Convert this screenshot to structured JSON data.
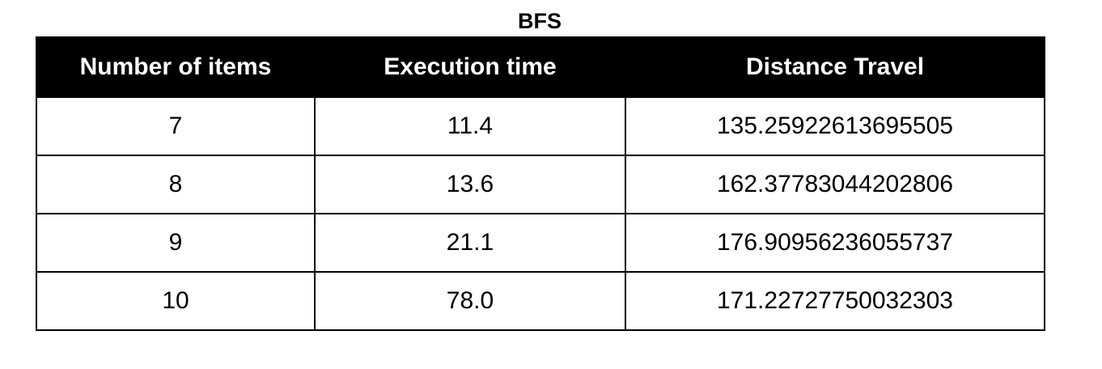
{
  "title": "BFS",
  "table": {
    "headers": [
      "Number of items",
      "Execution time",
      "Distance Travel"
    ],
    "rows": [
      [
        "7",
        "11.4",
        "135.25922613695505"
      ],
      [
        "8",
        "13.6",
        "162.37783044202806"
      ],
      [
        "9",
        "21.1",
        "176.90956236055737"
      ],
      [
        "10",
        "78.0",
        "171.22727750032303"
      ]
    ]
  },
  "colors": {
    "header_background": "#000000",
    "header_text": "#ffffff",
    "border": "#000000"
  }
}
